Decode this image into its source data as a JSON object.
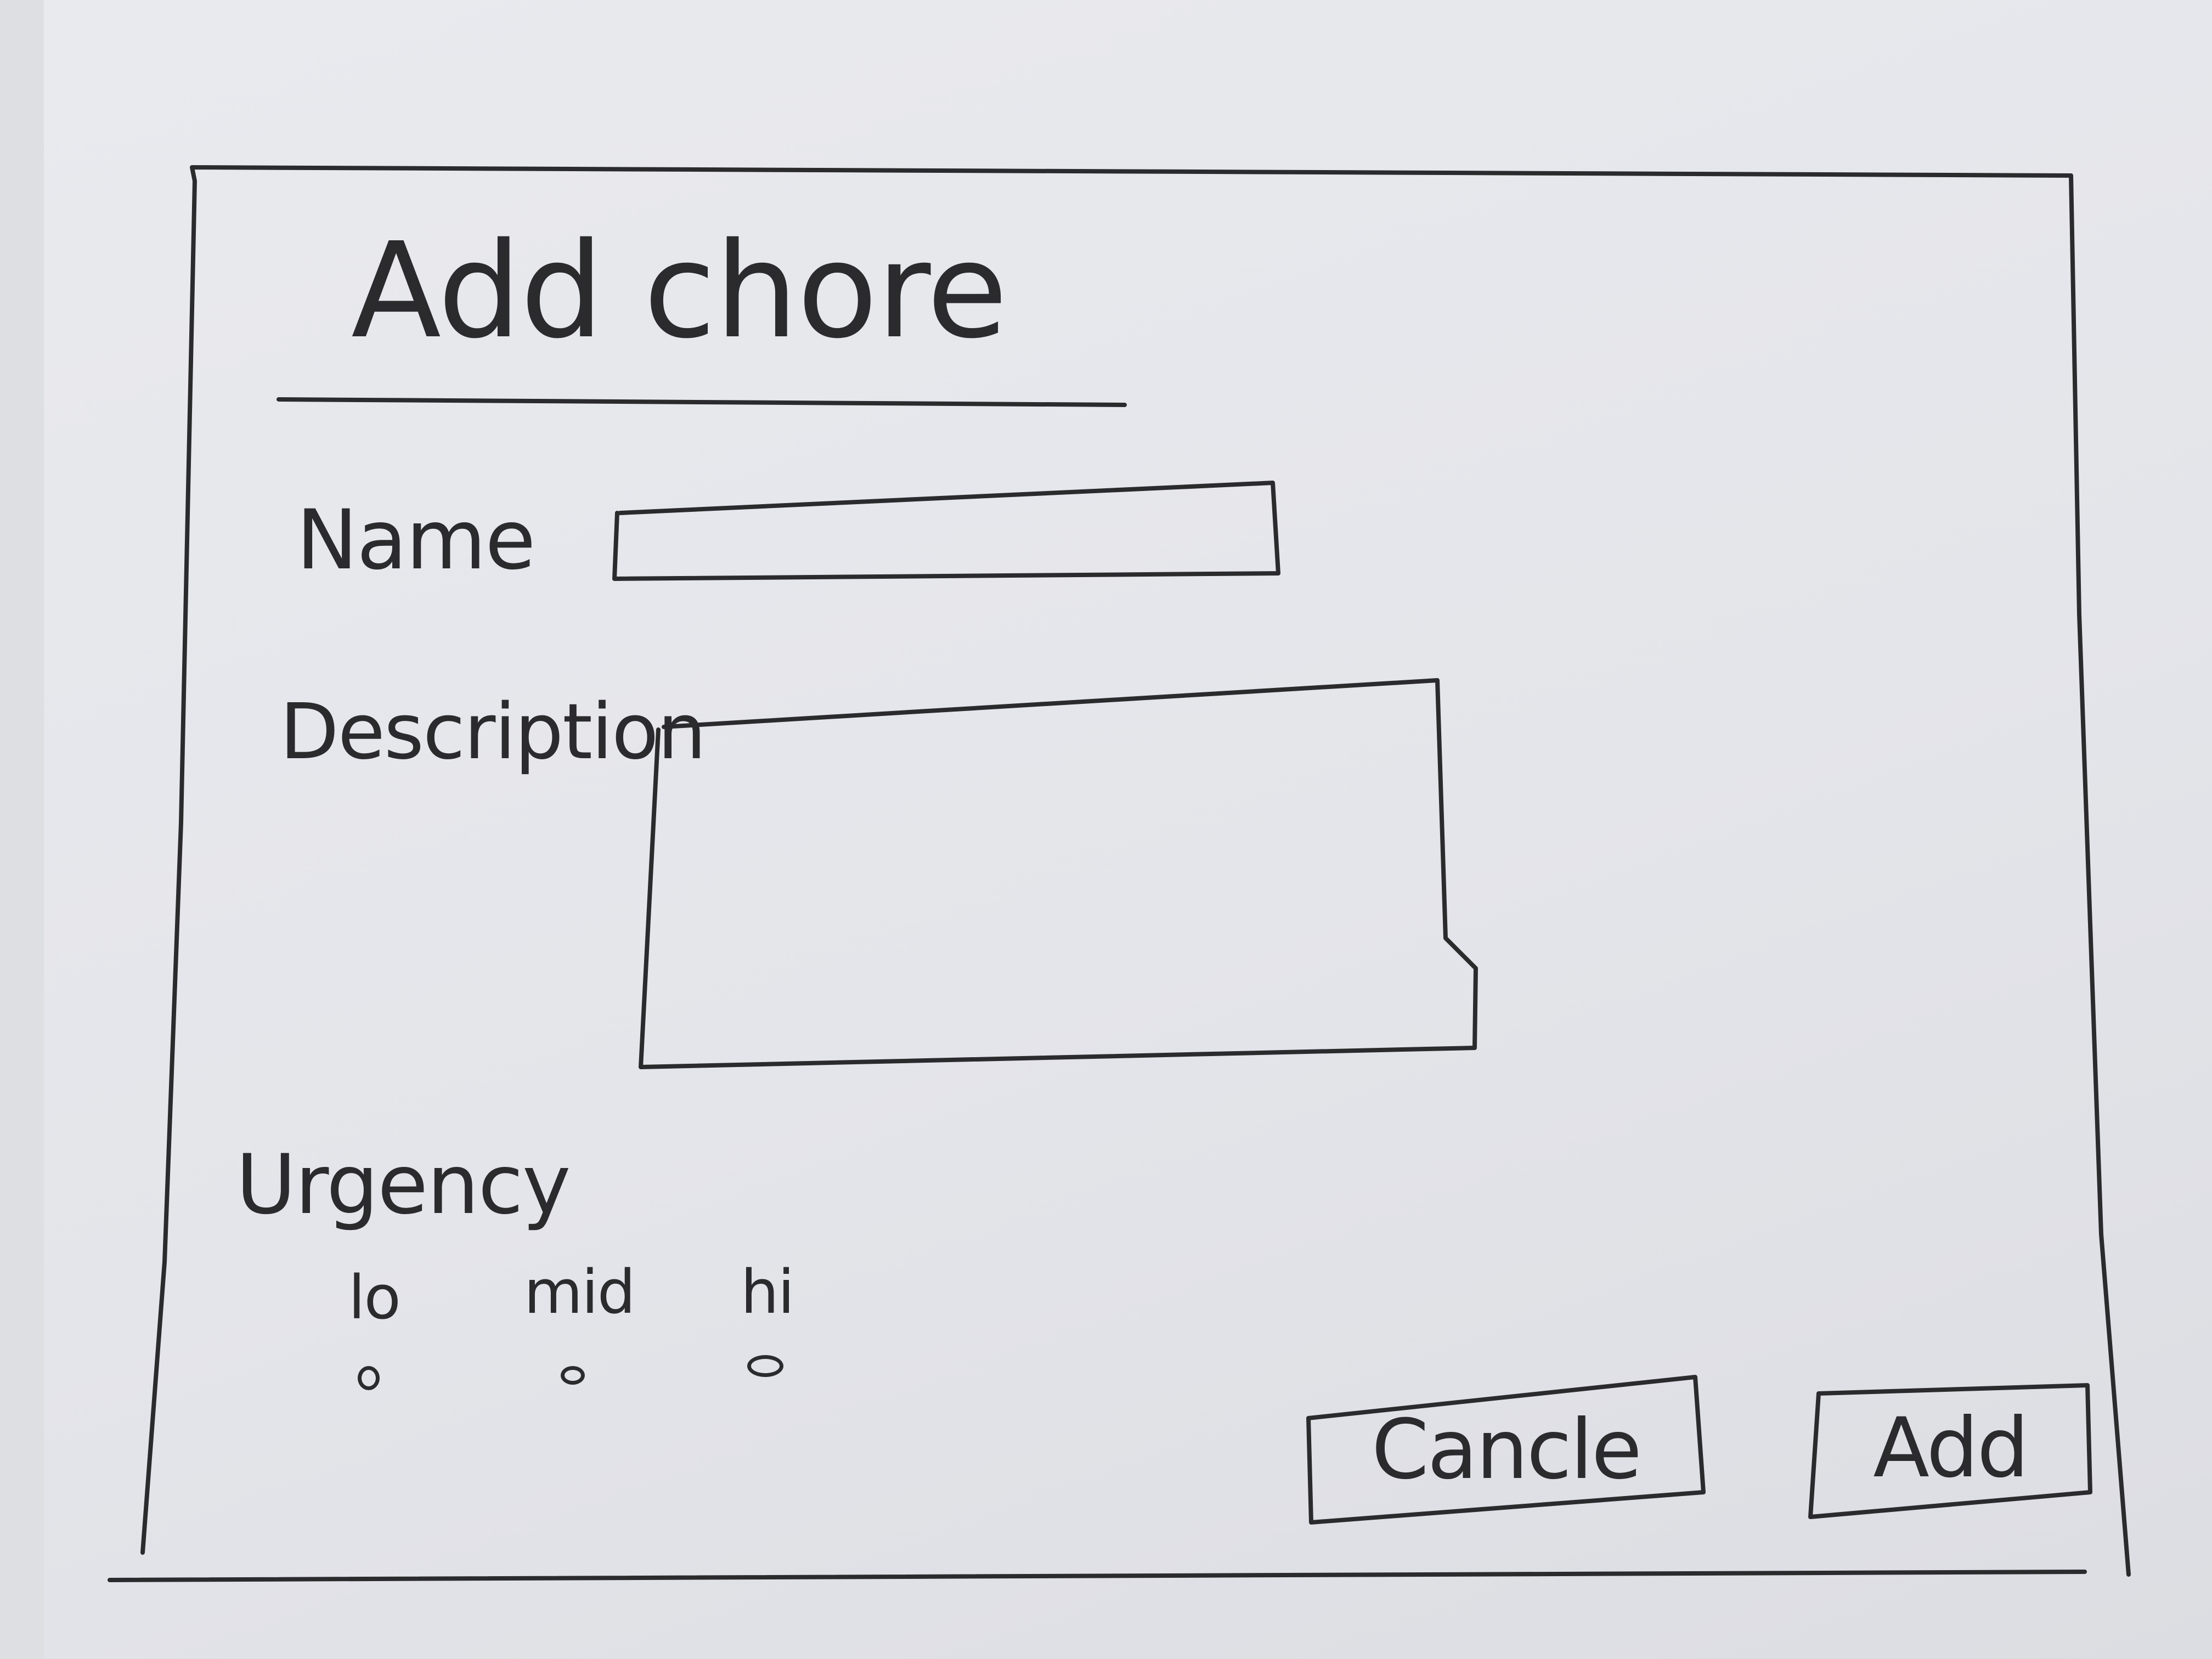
{
  "dialog": {
    "title": "Add chore"
  },
  "form": {
    "name_label": "Name",
    "name_value": "",
    "description_label": "Description",
    "description_value": "",
    "urgency_label": "Urgency",
    "urgency_options": [
      {
        "label": "lo"
      },
      {
        "label": "mid"
      },
      {
        "label": "hi"
      }
    ]
  },
  "actions": {
    "cancel_label": "Cancle",
    "add_label": "Add"
  },
  "colors": {
    "ink": "#2b2b2e",
    "paper": "#e6e7eb"
  }
}
